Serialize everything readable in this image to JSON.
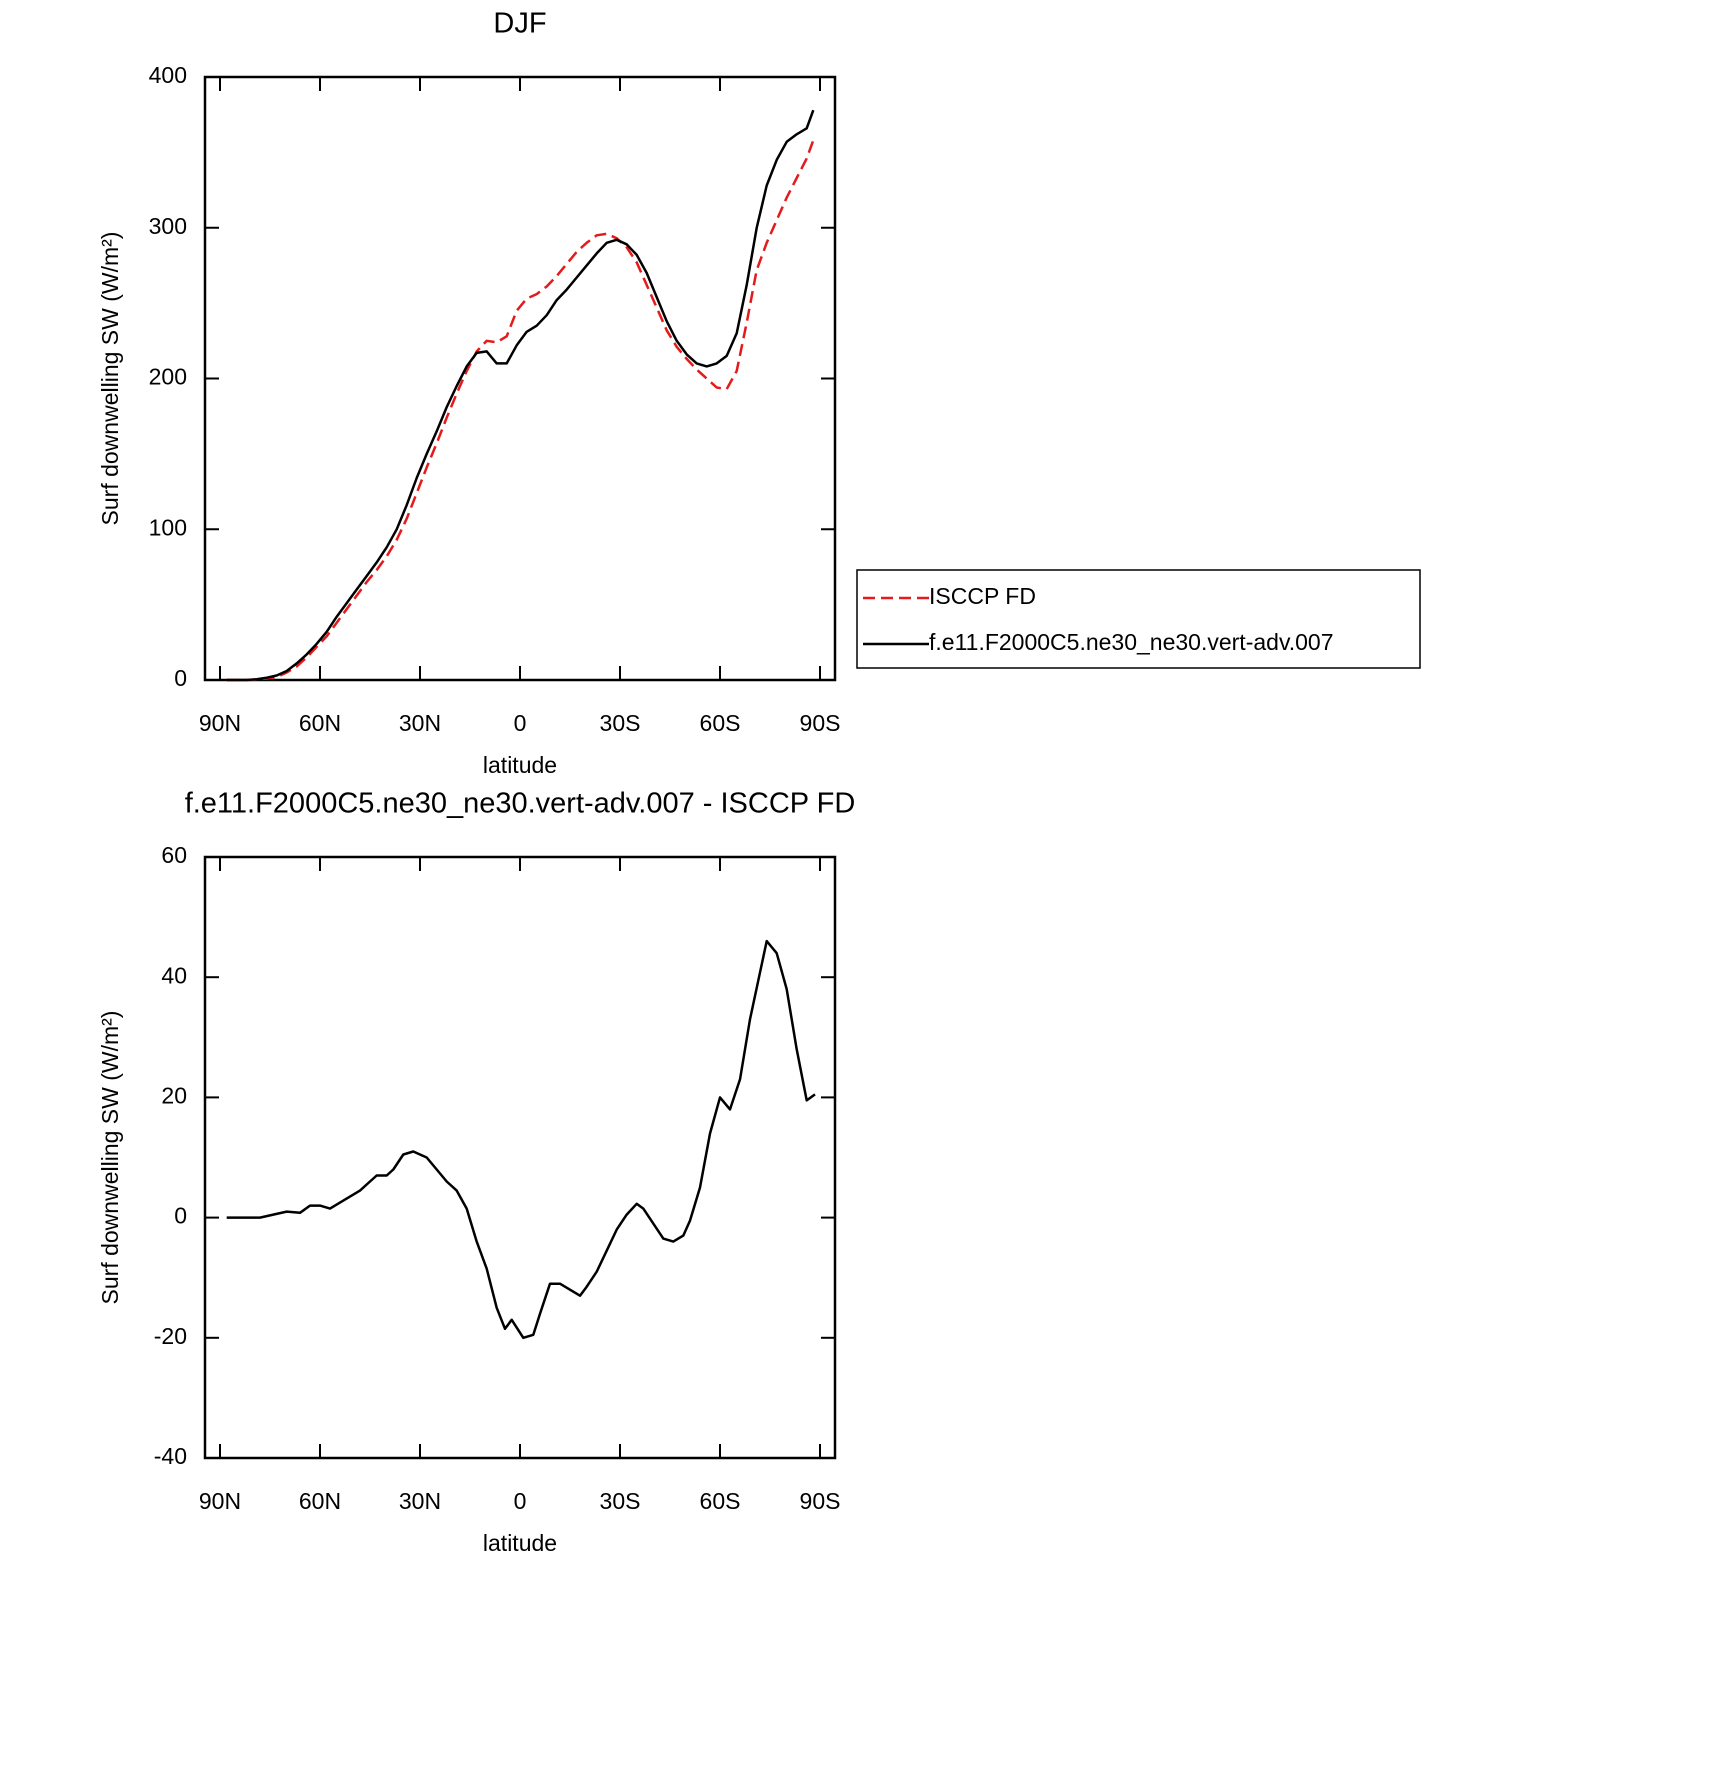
{
  "chart_data": [
    {
      "type": "line",
      "title": "DJF",
      "xlabel": "latitude",
      "ylabel": "Surf downwelling SW (W/m²)",
      "x": [
        88,
        85,
        82,
        79,
        76,
        73,
        70,
        67,
        64,
        61,
        58,
        55,
        52,
        49,
        46,
        43,
        40,
        37,
        34,
        31,
        28,
        25,
        22,
        19,
        16,
        13,
        10,
        7,
        4,
        1,
        -2,
        -5,
        -8,
        -11,
        -14,
        -17,
        -20,
        -23,
        -26,
        -29,
        -32,
        -35,
        -38,
        -41,
        -44,
        -47,
        -50,
        -53,
        -56,
        -59,
        -62,
        -65,
        -68,
        -71,
        -74,
        -77,
        -80,
        -83,
        -86,
        -88
      ],
      "series": [
        {
          "name": "ISCCP FD",
          "color": "#e41a1c",
          "linestyle": "dashed",
          "values": [
            0,
            0,
            0,
            0.3,
            1,
            2,
            5,
            9,
            15,
            22,
            29,
            38,
            47,
            56,
            65,
            73,
            82,
            93,
            107,
            124,
            141,
            157,
            174,
            190,
            205,
            218,
            225,
            224,
            228,
            245,
            253,
            256,
            261,
            268,
            276,
            284,
            290,
            295,
            296,
            293,
            287,
            277,
            262,
            247,
            232,
            221,
            213,
            206,
            200,
            194,
            193,
            205,
            237,
            272,
            290,
            305,
            320,
            333,
            346,
            358
          ]
        },
        {
          "name": "f.e11.F2000C5.ne30_ne30.vert-adv.007",
          "color": "#000000",
          "linestyle": "solid",
          "values": [
            0,
            0,
            0,
            0.5,
            1.5,
            3,
            6,
            11,
            17,
            24,
            32,
            42,
            51,
            60,
            69,
            78,
            88,
            100,
            116,
            134,
            150,
            165,
            181,
            195,
            208,
            217,
            218,
            210,
            210,
            222,
            231,
            235,
            242,
            252,
            259,
            267,
            275,
            283,
            290,
            292,
            289,
            282,
            270,
            254,
            238,
            225,
            216,
            210,
            208,
            210,
            215,
            230,
            262,
            300,
            328,
            345,
            357,
            362,
            366,
            378
          ]
        }
      ],
      "xlim": [
        94.5,
        -94.5
      ],
      "xticks": [
        {
          "value": 90,
          "label": "90N"
        },
        {
          "value": 60,
          "label": "60N"
        },
        {
          "value": 30,
          "label": "30N"
        },
        0,
        {
          "value": -30,
          "label": "30S"
        },
        {
          "value": -60,
          "label": "60S"
        },
        {
          "value": -90,
          "label": "90S"
        }
      ],
      "ylim": [
        0,
        400
      ],
      "yticks": [
        0,
        100,
        200,
        300,
        400
      ],
      "legend": "right"
    },
    {
      "type": "line",
      "title": "f.e11.F2000C5.ne30_ne30.vert-adv.007 - ISCCP FD",
      "xlabel": "latitude",
      "ylabel": "Surf downwelling SW (W/m²)",
      "x": [
        88,
        82,
        78,
        74,
        70,
        66,
        63,
        60,
        57,
        54,
        51,
        48,
        45,
        43,
        40,
        38,
        35,
        32,
        28,
        25,
        22,
        19,
        16,
        13,
        10,
        7,
        4.5,
        2.5,
        -1,
        -4,
        -6,
        -9,
        -12,
        -15,
        -18,
        -20,
        -23,
        -26,
        -29,
        -32,
        -35,
        -37,
        -40,
        -43,
        -46,
        -49,
        -51,
        -54,
        -57,
        -60,
        -63,
        -66,
        -69,
        -74,
        -77,
        -80,
        -83,
        -86,
        -88.5
      ],
      "values": [
        0,
        0,
        0,
        0.5,
        1,
        0.8,
        2,
        2,
        1.5,
        2.5,
        3.5,
        4.5,
        6,
        7,
        7,
        8,
        10.5,
        11,
        10,
        8,
        6,
        4.5,
        1.5,
        -4,
        -8.5,
        -15,
        -18.5,
        -17,
        -20,
        -19.5,
        -16,
        -11,
        -11,
        -12,
        -13,
        -11.5,
        -9,
        -5.5,
        -2,
        0.5,
        2.3,
        1.5,
        -1,
        -3.5,
        -4,
        -3,
        -0.5,
        5,
        14,
        20,
        18,
        23,
        33,
        46,
        44,
        38,
        28,
        19.5,
        20.5
      ],
      "color": "#000000",
      "xlim": [
        94.5,
        -94.5
      ],
      "xticks": [
        {
          "value": 90,
          "label": "90N"
        },
        {
          "value": 60,
          "label": "60N"
        },
        {
          "value": 30,
          "label": "30N"
        },
        0,
        {
          "value": -30,
          "label": "30S"
        },
        {
          "value": -60,
          "label": "60S"
        },
        {
          "value": -90,
          "label": "90S"
        }
      ],
      "ylim": [
        -40,
        60
      ],
      "yticks": [
        -40,
        -20,
        0,
        20,
        40,
        60
      ]
    }
  ]
}
